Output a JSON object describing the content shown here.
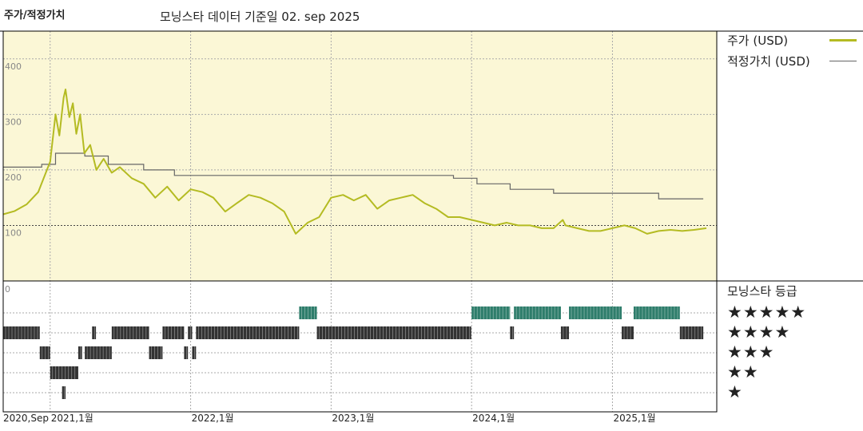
{
  "header": {
    "chart_title": "주가/적정가치",
    "data_date": "모닝스타 데이터 기준일 02. sep 2025"
  },
  "legend": {
    "price_label": "주가 (USD)",
    "fair_value_label": "적정가치 (USD)"
  },
  "rating_panel": {
    "title": "모닝스타 등급",
    "rows": [
      "★★★★★",
      "★★★★",
      "★★★",
      "★★",
      "★"
    ]
  },
  "colors": {
    "price_line": "#b4bb22",
    "fair_value_line": "#666666",
    "plot_background": "#fbf7d6",
    "five_star_bars": "#2e7d6b",
    "rating_bars": "#333333"
  },
  "chart_data": {
    "type": "line",
    "x_axis": {
      "start": "2020-09-01",
      "end": "2025-09-02",
      "ticks": [
        {
          "date": "2020-09-01",
          "label": "2020,Sep"
        },
        {
          "date": "2021-01-01",
          "label": "2021,1월"
        },
        {
          "date": "2022-01-01",
          "label": "2022,1월"
        },
        {
          "date": "2023-01-01",
          "label": "2023,1월"
        },
        {
          "date": "2024-01-01",
          "label": "2024,1월"
        },
        {
          "date": "2025-01-01",
          "label": "2025,1월"
        }
      ]
    },
    "y_axis": {
      "range": [
        0,
        450
      ],
      "ticks": [
        {
          "value": 100,
          "label": "100"
        },
        {
          "value": 200,
          "label": "200"
        },
        {
          "value": 300,
          "label": "300"
        },
        {
          "value": 400,
          "label": "400"
        }
      ],
      "rating_axis_label": "0"
    },
    "price_series": [
      [
        "2020-09-01",
        120
      ],
      [
        "2020-10-01",
        126
      ],
      [
        "2020-11-01",
        138
      ],
      [
        "2020-12-01",
        160
      ],
      [
        "2021-01-01",
        215
      ],
      [
        "2021-01-15",
        300
      ],
      [
        "2021-01-25",
        262
      ],
      [
        "2021-02-05",
        330
      ],
      [
        "2021-02-10",
        345
      ],
      [
        "2021-02-20",
        295
      ],
      [
        "2021-03-01",
        320
      ],
      [
        "2021-03-10",
        265
      ],
      [
        "2021-03-20",
        300
      ],
      [
        "2021-03-31",
        230
      ],
      [
        "2021-04-15",
        245
      ],
      [
        "2021-05-01",
        200
      ],
      [
        "2021-05-20",
        220
      ],
      [
        "2021-06-10",
        195
      ],
      [
        "2021-07-01",
        205
      ],
      [
        "2021-08-01",
        185
      ],
      [
        "2021-09-01",
        175
      ],
      [
        "2021-10-01",
        150
      ],
      [
        "2021-11-01",
        170
      ],
      [
        "2021-12-01",
        145
      ],
      [
        "2022-01-01",
        165
      ],
      [
        "2022-02-01",
        160
      ],
      [
        "2022-03-01",
        150
      ],
      [
        "2022-04-01",
        125
      ],
      [
        "2022-05-01",
        140
      ],
      [
        "2022-06-01",
        155
      ],
      [
        "2022-07-01",
        150
      ],
      [
        "2022-08-01",
        140
      ],
      [
        "2022-09-01",
        125
      ],
      [
        "2022-10-01",
        85
      ],
      [
        "2022-11-01",
        105
      ],
      [
        "2022-12-01",
        115
      ],
      [
        "2023-01-01",
        150
      ],
      [
        "2023-02-01",
        155
      ],
      [
        "2023-03-01",
        145
      ],
      [
        "2023-04-01",
        155
      ],
      [
        "2023-05-01",
        130
      ],
      [
        "2023-06-01",
        145
      ],
      [
        "2023-07-01",
        150
      ],
      [
        "2023-08-01",
        155
      ],
      [
        "2023-09-01",
        140
      ],
      [
        "2023-10-01",
        130
      ],
      [
        "2023-11-01",
        115
      ],
      [
        "2023-12-01",
        115
      ],
      [
        "2024-01-01",
        110
      ],
      [
        "2024-02-01",
        105
      ],
      [
        "2024-03-01",
        100
      ],
      [
        "2024-04-01",
        105
      ],
      [
        "2024-05-01",
        100
      ],
      [
        "2024-06-01",
        100
      ],
      [
        "2024-07-01",
        95
      ],
      [
        "2024-08-01",
        95
      ],
      [
        "2024-08-25",
        110
      ],
      [
        "2024-09-01",
        100
      ],
      [
        "2024-10-01",
        95
      ],
      [
        "2024-11-01",
        90
      ],
      [
        "2024-12-01",
        90
      ],
      [
        "2025-01-01",
        95
      ],
      [
        "2025-02-01",
        100
      ],
      [
        "2025-03-01",
        95
      ],
      [
        "2025-04-01",
        85
      ],
      [
        "2025-05-01",
        90
      ],
      [
        "2025-06-01",
        92
      ],
      [
        "2025-07-01",
        90
      ],
      [
        "2025-08-01",
        92
      ],
      [
        "2025-09-02",
        95
      ]
    ],
    "fair_value_series": [
      [
        "2020-09-01",
        205
      ],
      [
        "2020-12-10",
        205
      ],
      [
        "2020-12-10",
        210
      ],
      [
        "2021-01-15",
        210
      ],
      [
        "2021-01-15",
        230
      ],
      [
        "2021-04-01",
        230
      ],
      [
        "2021-04-01",
        225
      ],
      [
        "2021-06-01",
        225
      ],
      [
        "2021-06-01",
        210
      ],
      [
        "2021-09-01",
        210
      ],
      [
        "2021-09-01",
        200
      ],
      [
        "2021-11-20",
        200
      ],
      [
        "2021-11-20",
        190
      ],
      [
        "2023-11-15",
        190
      ],
      [
        "2023-11-15",
        185
      ],
      [
        "2024-01-15",
        185
      ],
      [
        "2024-01-15",
        175
      ],
      [
        "2024-04-10",
        175
      ],
      [
        "2024-04-10",
        165
      ],
      [
        "2024-08-01",
        165
      ],
      [
        "2024-08-01",
        158
      ],
      [
        "2025-05-01",
        158
      ],
      [
        "2025-05-01",
        148
      ],
      [
        "2025-08-25",
        148
      ]
    ],
    "rating_periods": [
      {
        "stars": 5,
        "periods": [
          [
            "2022-10-10",
            "2022-11-25"
          ],
          [
            "2024-01-01",
            "2024-04-10"
          ],
          [
            "2024-04-20",
            "2024-08-20"
          ],
          [
            "2024-09-10",
            "2025-01-25"
          ],
          [
            "2025-02-25",
            "2025-06-25"
          ]
        ]
      },
      {
        "stars": 4,
        "periods": [
          [
            "2020-09-01",
            "2020-12-05"
          ],
          [
            "2021-04-20",
            "2021-04-30"
          ],
          [
            "2021-06-10",
            "2021-09-15"
          ],
          [
            "2021-10-20",
            "2021-12-15"
          ],
          [
            "2021-12-25",
            "2022-01-05"
          ],
          [
            "2022-01-15",
            "2022-10-10"
          ],
          [
            "2022-11-25",
            "2023-12-31"
          ],
          [
            "2024-04-10",
            "2024-04-20"
          ],
          [
            "2024-08-20",
            "2024-09-10"
          ],
          [
            "2025-01-25",
            "2025-02-25"
          ],
          [
            "2025-06-25",
            "2025-08-25"
          ]
        ]
      },
      {
        "stars": 3,
        "periods": [
          [
            "2020-12-05",
            "2021-01-01"
          ],
          [
            "2021-03-15",
            "2021-03-25"
          ],
          [
            "2021-04-01",
            "2021-06-10"
          ],
          [
            "2021-09-15",
            "2021-10-20"
          ],
          [
            "2021-12-15",
            "2021-12-25"
          ],
          [
            "2022-01-05",
            "2022-01-15"
          ]
        ]
      },
      {
        "stars": 2,
        "periods": [
          [
            "2021-01-01",
            "2021-03-15"
          ]
        ]
      },
      {
        "stars": 1,
        "periods": [
          [
            "2021-02-01",
            "2021-02-10"
          ]
        ]
      }
    ]
  }
}
